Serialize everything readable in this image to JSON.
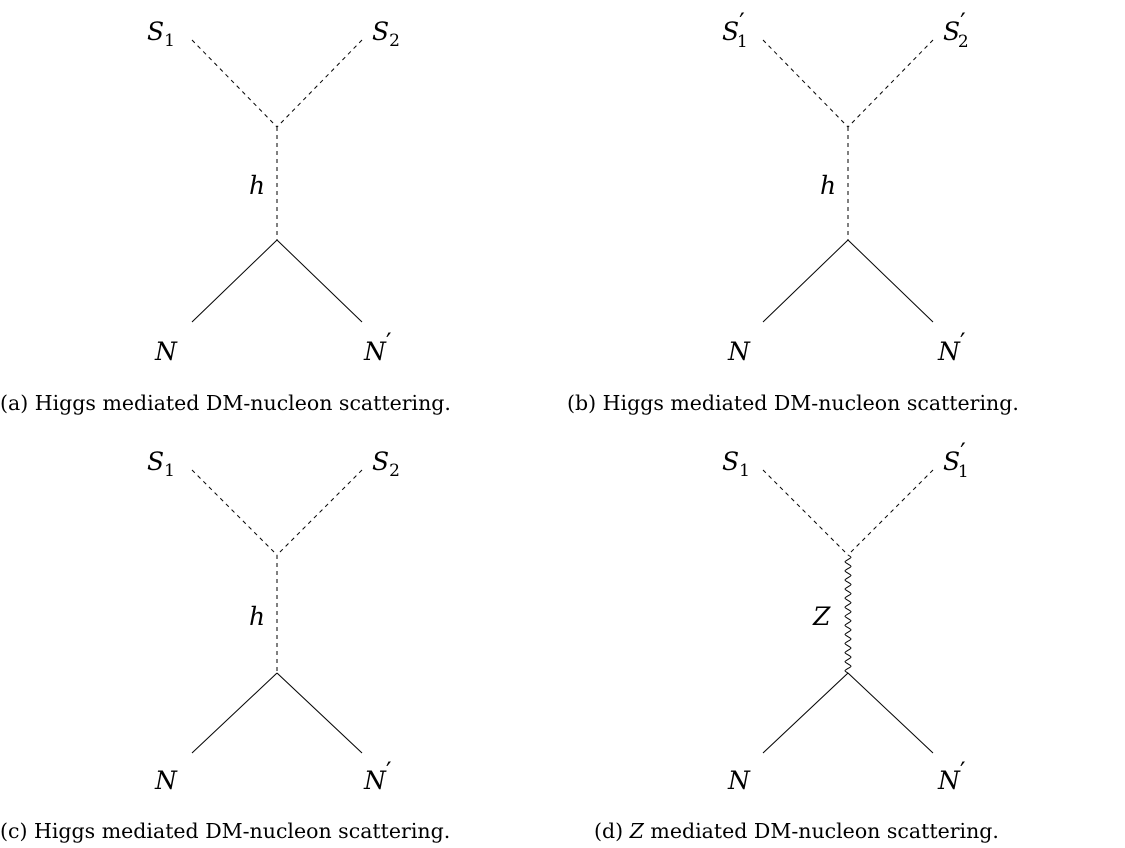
{
  "panels": [
    {
      "id": "a",
      "top_left": "S",
      "top_left_sub": "1",
      "top_left_prime": "",
      "top_right": "S",
      "top_right_sub": "2",
      "top_right_prime": "",
      "mediator": "h",
      "mediator_type": "scalar",
      "bottom_left": "N",
      "bottom_right": "N",
      "bottom_right_prime": "′",
      "caption_prefix": "(a) ",
      "caption_var": "",
      "caption_text": "Higgs mediated DM-nucleon scattering."
    },
    {
      "id": "b",
      "top_left": "S",
      "top_left_sub": "1",
      "top_left_prime": "′",
      "top_right": "S",
      "top_right_sub": "2",
      "top_right_prime": "′",
      "mediator": "h",
      "mediator_type": "scalar",
      "bottom_left": "N",
      "bottom_right": "N",
      "bottom_right_prime": "′",
      "caption_prefix": "(b) ",
      "caption_var": "",
      "caption_text": "Higgs mediated DM-nucleon scattering."
    },
    {
      "id": "c",
      "top_left": "S",
      "top_left_sub": "1",
      "top_left_prime": "",
      "top_right": "S",
      "top_right_sub": "2",
      "top_right_prime": "",
      "mediator": "h",
      "mediator_type": "scalar",
      "bottom_left": "N",
      "bottom_right": "N",
      "bottom_right_prime": "′",
      "caption_prefix": "(c) ",
      "caption_var": "",
      "caption_text": "Higgs mediated DM-nucleon scattering."
    },
    {
      "id": "d",
      "top_left": "S",
      "top_left_sub": "1",
      "top_left_prime": "",
      "top_right": "S",
      "top_right_sub": "1",
      "top_right_prime": "′",
      "mediator": "Z",
      "mediator_type": "vector",
      "bottom_left": "N",
      "bottom_right": "N",
      "bottom_right_prime": "′",
      "caption_prefix": "(d) ",
      "caption_var": "Z",
      "caption_text": " mediated DM-nucleon scattering."
    }
  ]
}
